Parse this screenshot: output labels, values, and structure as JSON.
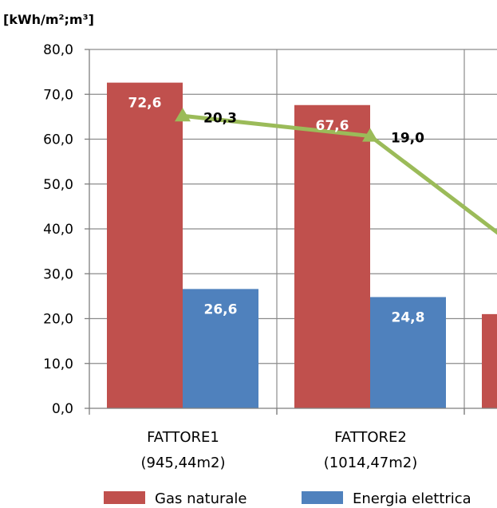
{
  "chart_data": {
    "type": "bar",
    "unit_label": "[kWh/m²;m³]",
    "ylim": [
      0,
      80
    ],
    "yticks": [
      "0,0",
      "10,0",
      "20,0",
      "30,0",
      "40,0",
      "50,0",
      "60,0",
      "70,0",
      "80,0"
    ],
    "grid": true,
    "categories": [
      {
        "line1": "FATTORE1",
        "line2": "(945,44m2)"
      },
      {
        "line1": "FATTORE2",
        "line2": "(1014,47m2)"
      },
      {
        "line1": "",
        "line2": ""
      }
    ],
    "series": [
      {
        "name": "Gas naturale",
        "kind": "bar",
        "color": "#c0504d",
        "values": [
          72.6,
          67.6,
          21.0
        ],
        "labels": [
          "72,6",
          "67,6",
          ""
        ]
      },
      {
        "name": "Energia elettrica",
        "kind": "bar",
        "color": "#4f81bd",
        "values": [
          26.6,
          24.8,
          null
        ],
        "labels": [
          "26,6",
          "24,8",
          ""
        ]
      },
      {
        "name": "",
        "kind": "line",
        "color": "#9bbb59",
        "values": [
          65.2,
          60.7,
          29.0
        ],
        "labels": [
          "20,3",
          "19,0",
          ""
        ]
      }
    ],
    "legend": {
      "position": "bottom"
    }
  }
}
